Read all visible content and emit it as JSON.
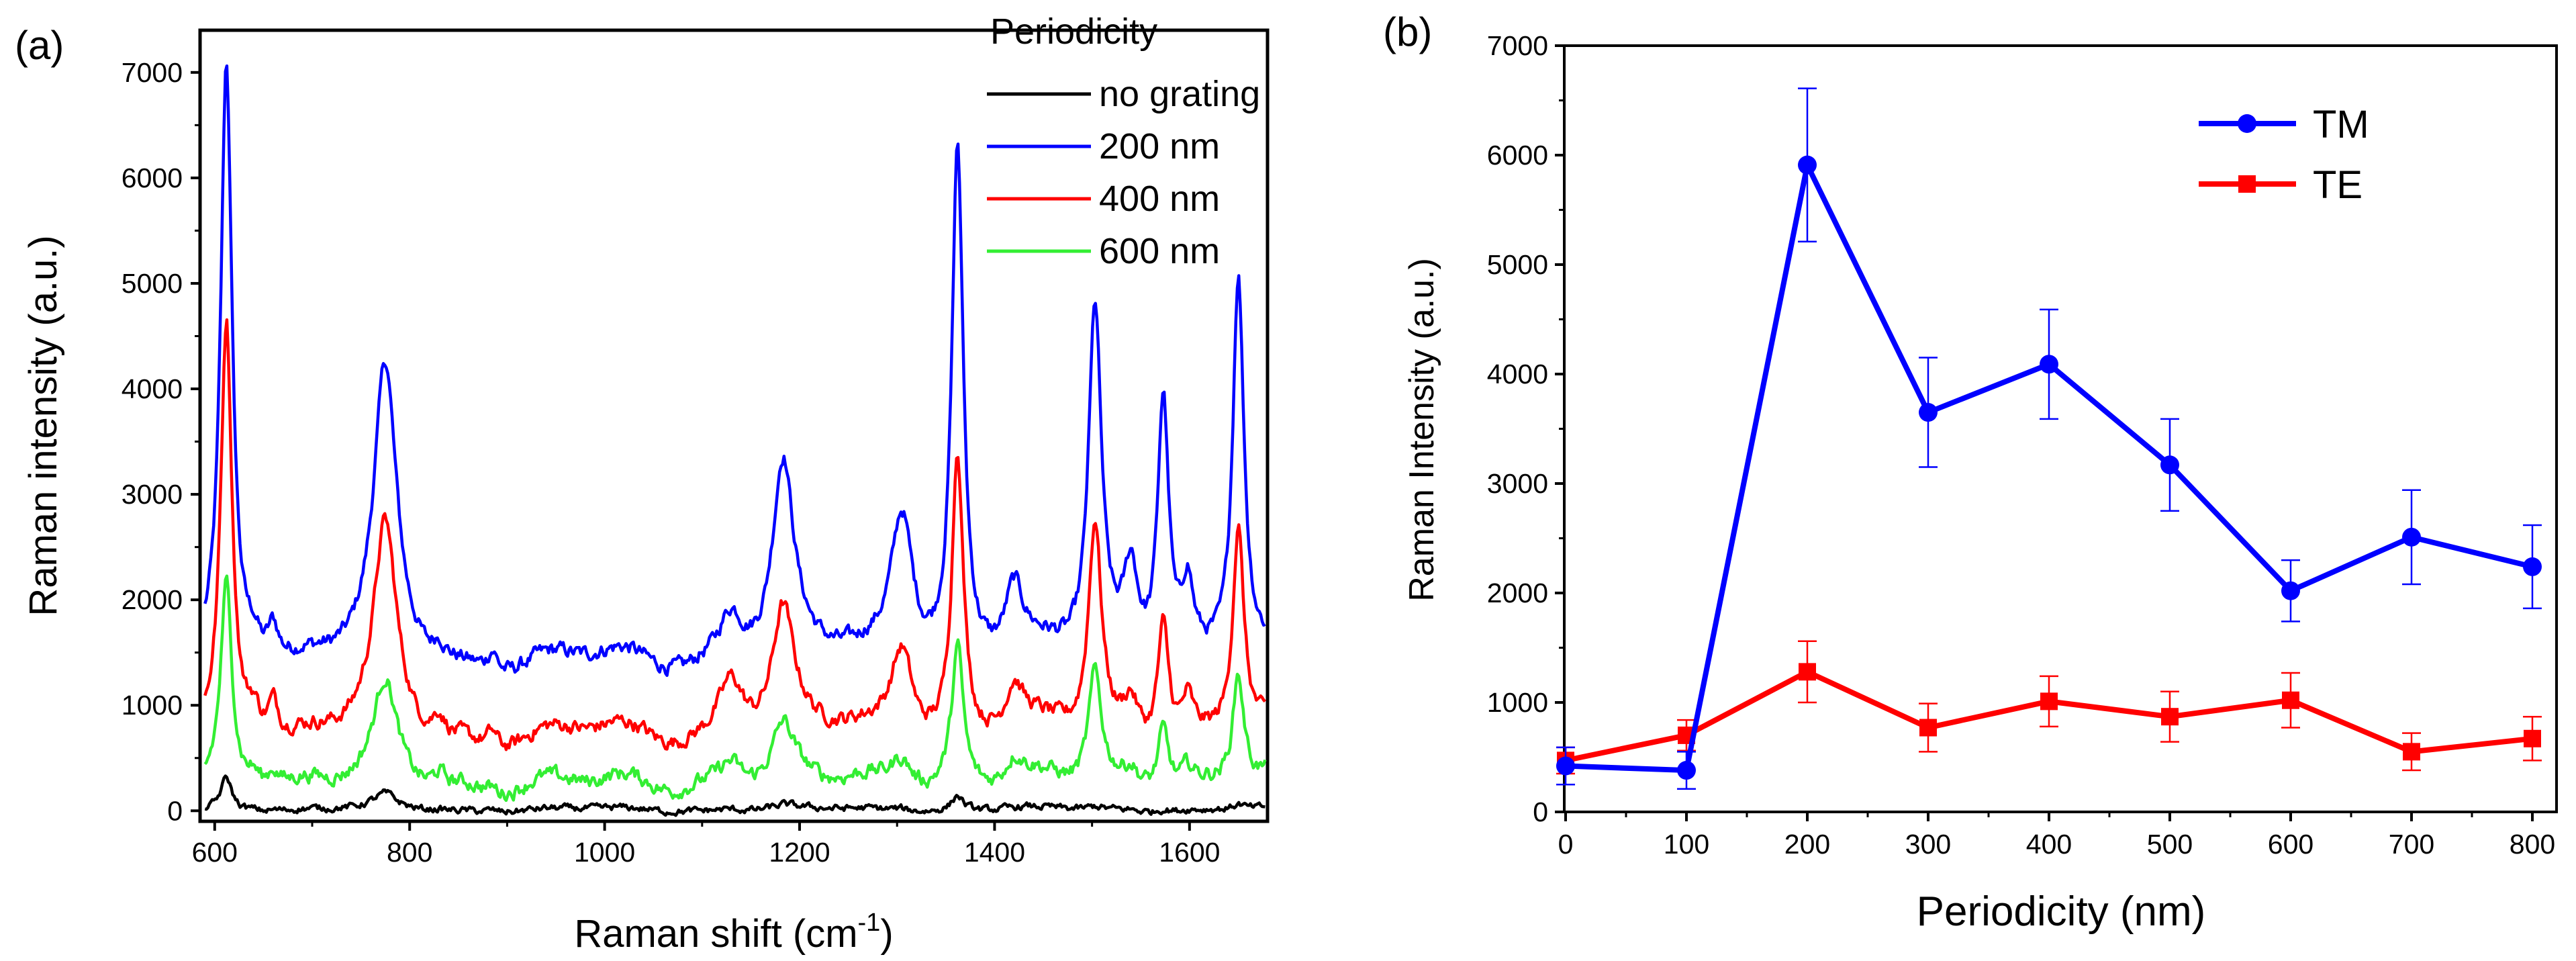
{
  "chart_data": [
    {
      "type": "line",
      "panel_label": "(a)",
      "title": "",
      "xlabel_main": "Raman shift (cm",
      "xlabel_sup": "-1",
      "xlabel_end": ")",
      "ylabel": "Raman intensity (a.u.)",
      "xlim": [
        585,
        1680
      ],
      "ylim": [
        -100,
        7400
      ],
      "xticks": [
        600,
        800,
        1000,
        1200,
        1400,
        1600
      ],
      "yticks": [
        0,
        1000,
        2000,
        3000,
        4000,
        5000,
        6000,
        7000
      ],
      "legend_title": "Periodicity",
      "legend_position": "top-right",
      "peaks_cm1": [
        612,
        640,
        660,
        775,
        830,
        885,
        1130,
        1183,
        1305,
        1362,
        1420,
        1503,
        1540,
        1573,
        1598,
        1650
      ],
      "series": [
        {
          "name": "no grating",
          "color": "#000000",
          "baseline": 10,
          "values": [
            320,
            25,
            20,
            140,
            20,
            25,
            30,
            40,
            35,
            150,
            20,
            40,
            20,
            40,
            20,
            60
          ]
        },
        {
          "name": "200 nm",
          "color": "#0000ff",
          "baseline": 1400,
          "values": [
            7100,
            1650,
            1750,
            4100,
            1550,
            1600,
            1900,
            3200,
            2850,
            6250,
            2000,
            4700,
            2250,
            3950,
            2100,
            5030
          ]
        },
        {
          "name": "400 nm",
          "color": "#ff0000",
          "baseline": 700,
          "values": [
            4650,
            1000,
            1050,
            2600,
            900,
            850,
            1300,
            1800,
            1600,
            3400,
            1100,
            2700,
            1050,
            1850,
            1050,
            2650
          ]
        },
        {
          "name": "600 nm",
          "color": "#33ee33",
          "baseline": 250,
          "values": [
            2150,
            400,
            420,
            1150,
            380,
            300,
            500,
            750,
            550,
            1550,
            450,
            1300,
            400,
            850,
            400,
            1300
          ]
        }
      ]
    },
    {
      "type": "line",
      "panel_label": "(b)",
      "title": "",
      "xlabel": "Periodicity (nm)",
      "ylabel": "Raman Intensity (a.u.)",
      "xlim": [
        0,
        820
      ],
      "ylim": [
        0,
        7000
      ],
      "xticks": [
        0,
        100,
        200,
        300,
        400,
        500,
        600,
        700,
        800
      ],
      "yticks": [
        0,
        1000,
        2000,
        3000,
        4000,
        5000,
        6000,
        7000
      ],
      "legend_position": "top-right",
      "x": [
        0,
        100,
        200,
        300,
        400,
        500,
        600,
        700,
        800
      ],
      "series": [
        {
          "name": "TM",
          "color": "#0000ff",
          "marker": "circle",
          "values": [
            420,
            380,
            5910,
            3650,
            4090,
            3170,
            2020,
            2510,
            2240
          ],
          "errors": [
            170,
            170,
            700,
            500,
            500,
            420,
            280,
            430,
            380
          ]
        },
        {
          "name": "TE",
          "color": "#ff0000",
          "marker": "square",
          "values": [
            470,
            700,
            1280,
            770,
            1010,
            870,
            1020,
            550,
            670
          ],
          "errors": [
            120,
            140,
            280,
            220,
            230,
            230,
            250,
            170,
            200
          ]
        }
      ]
    }
  ]
}
